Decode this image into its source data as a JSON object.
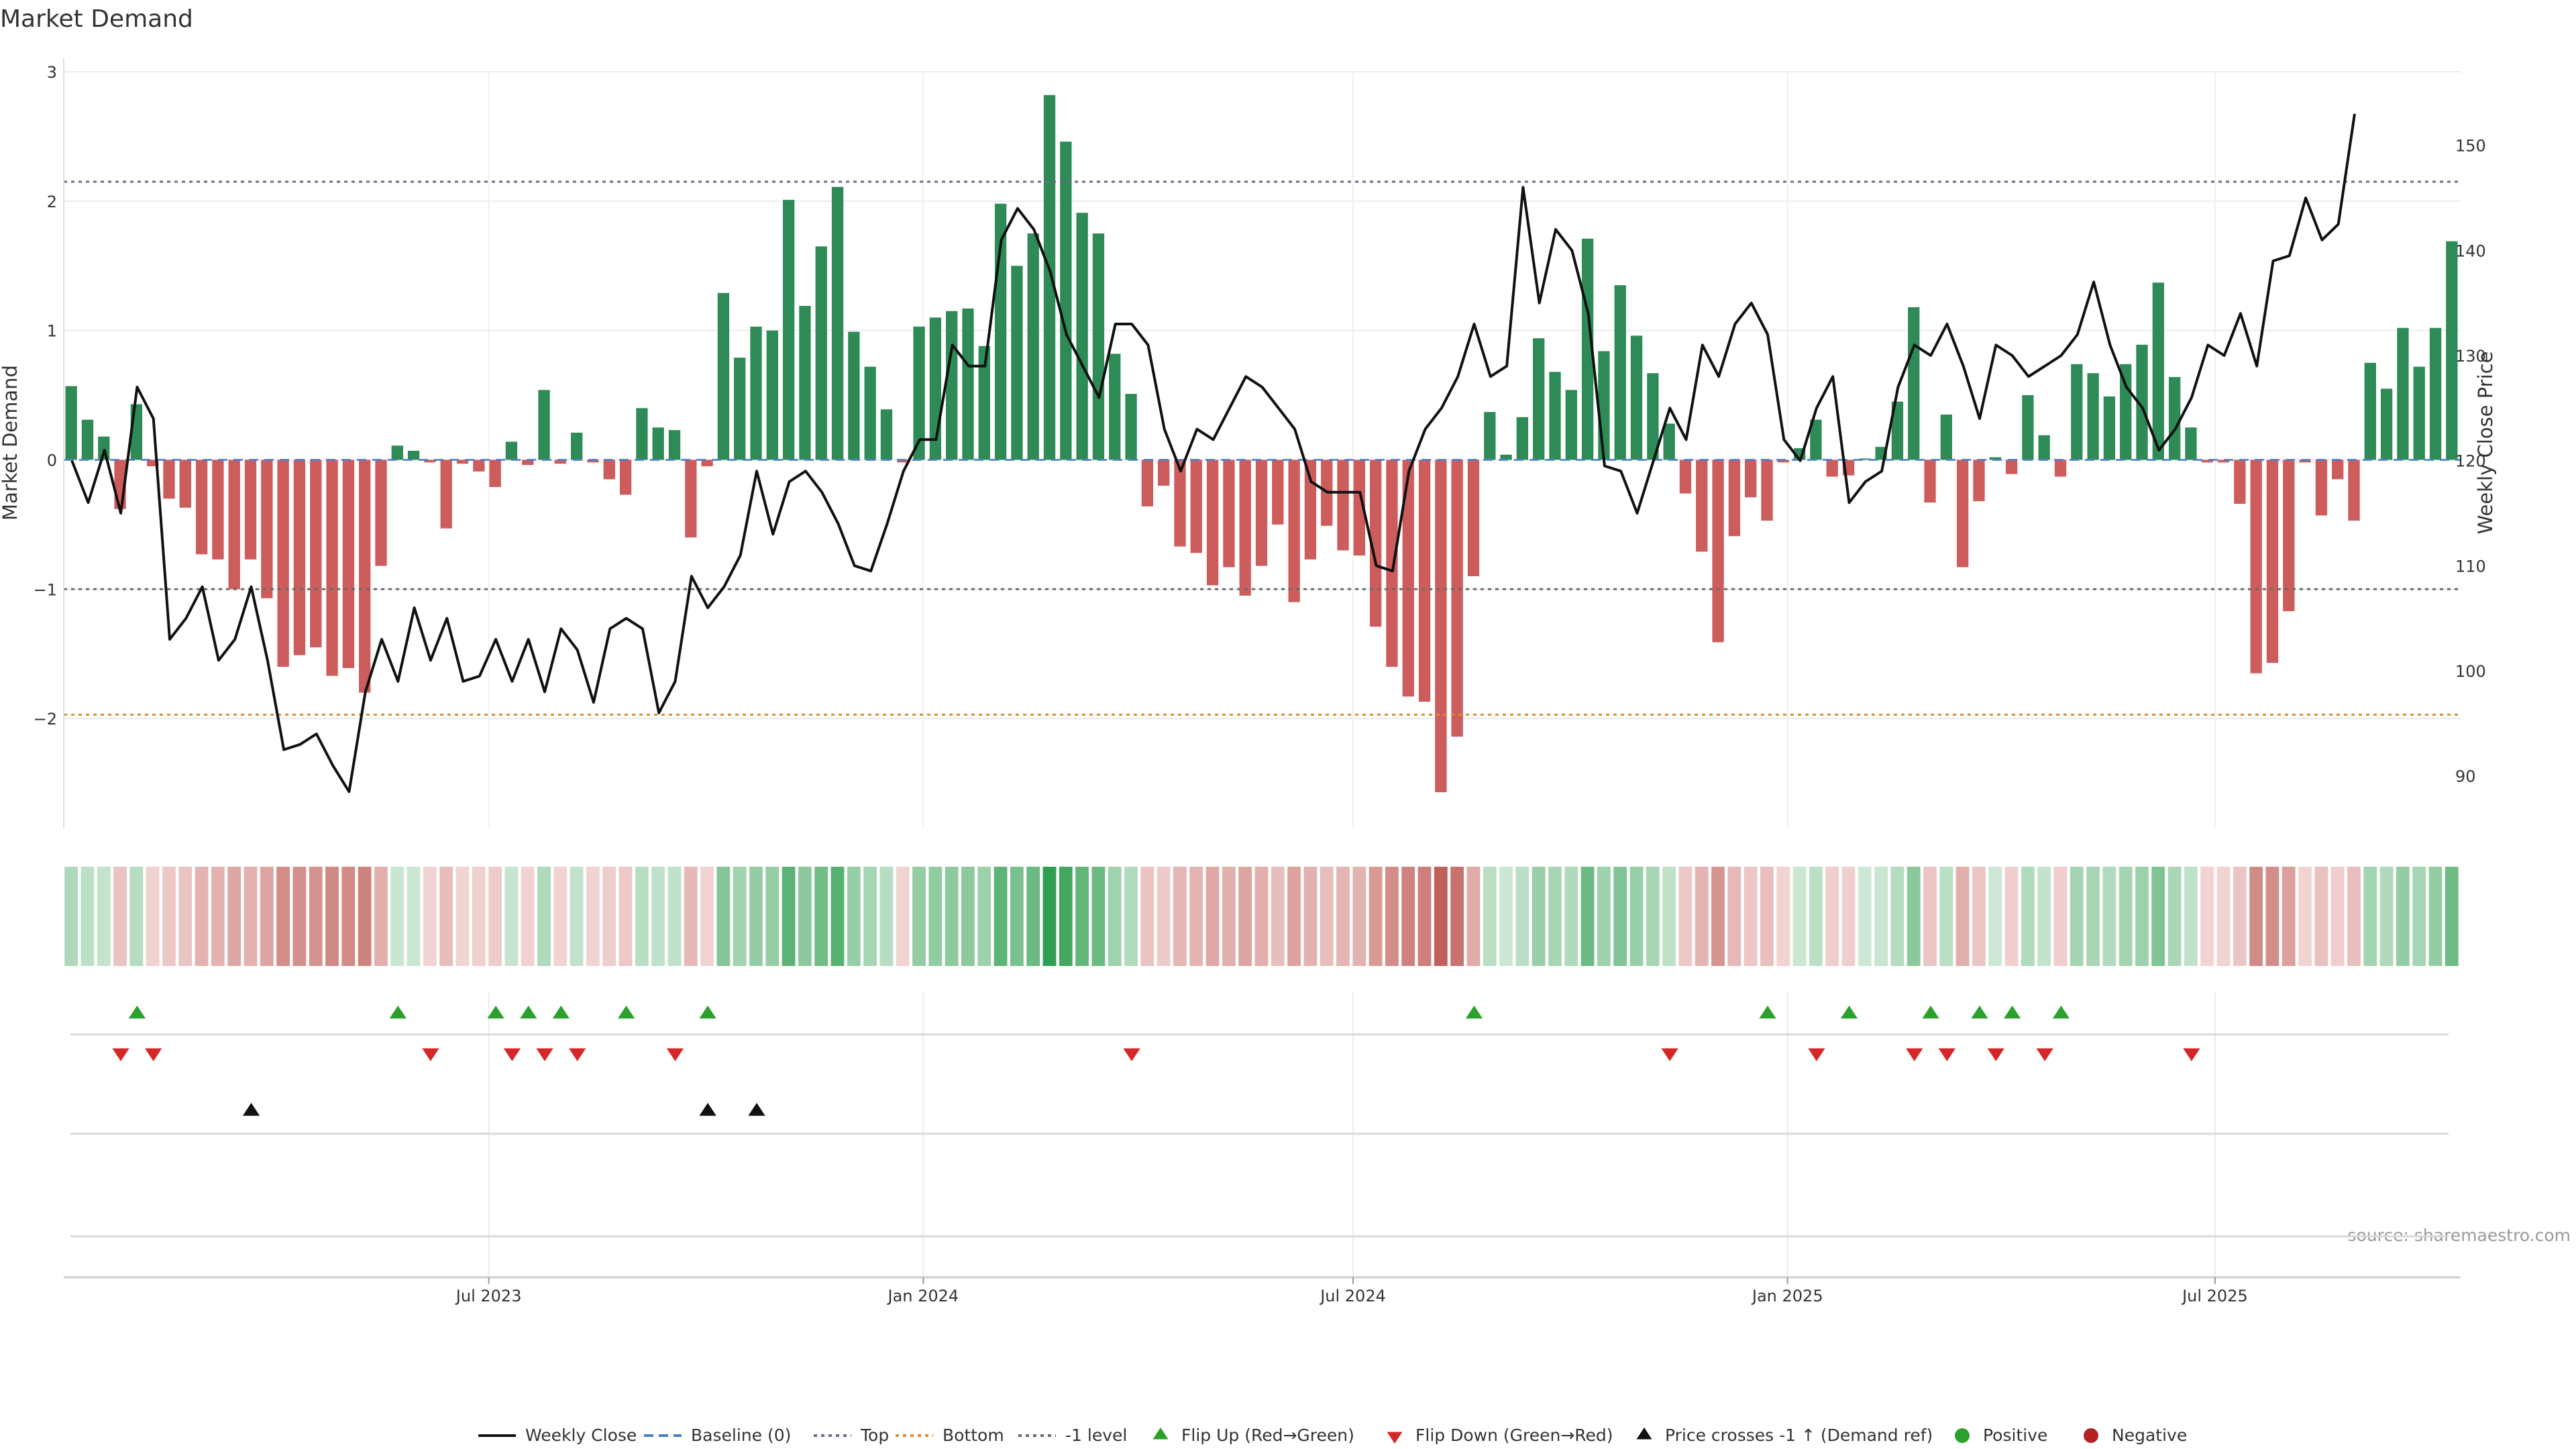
{
  "chart_data": {
    "type": "bar",
    "title": "Market Demand",
    "ylabel_left": "Market Demand",
    "ylabel_right": "Weekly Close Price",
    "source": "source: sharemaestro.com",
    "ylim_left": [
      -2.85,
      3.0
    ],
    "ylim_right": [
      85,
      157
    ],
    "yticks_left": [
      -2,
      -1,
      0,
      1,
      2,
      3
    ],
    "yticks_left_labels": [
      "−2",
      "−1",
      "0",
      "1",
      "2",
      "3"
    ],
    "yticks_right": [
      90,
      100,
      110,
      120,
      130,
      140,
      150
    ],
    "yticks_right_labels": [
      "90",
      "100",
      "110",
      "120",
      "130",
      "140",
      "150"
    ],
    "x_start": "2023-01-02",
    "x_end": "2025-10-13",
    "x_ticks": [
      {
        "date": "2023-07-01",
        "label": "Jul 2023"
      },
      {
        "date": "2024-01-01",
        "label": "Jan 2024"
      },
      {
        "date": "2024-07-01",
        "label": "Jul 2024"
      },
      {
        "date": "2025-01-01",
        "label": "Jan 2025"
      },
      {
        "date": "2025-07-01",
        "label": "Jul 2025"
      }
    ],
    "reference_lines": [
      {
        "name": "Top",
        "value": 2.15,
        "color": "#6b6b8a",
        "style": "dotted"
      },
      {
        "name": "Bottom",
        "value": -1.97,
        "color": "#e08a2e",
        "style": "dotted"
      },
      {
        "name": "-1 level",
        "value": -1.0,
        "color": "#6b6b6b",
        "style": "dotted"
      }
    ],
    "demand": [
      0.57,
      0.31,
      0.18,
      -0.38,
      0.43,
      -0.05,
      -0.3,
      -0.37,
      -0.73,
      -0.77,
      -1.0,
      -0.77,
      -1.07,
      -1.6,
      -1.51,
      -1.45,
      -1.67,
      -1.61,
      -1.8,
      -0.82,
      0.11,
      0.07,
      -0.02,
      -0.53,
      -0.03,
      -0.09,
      -0.21,
      0.14,
      -0.04,
      0.54,
      -0.03,
      0.21,
      -0.02,
      -0.15,
      -0.27,
      0.4,
      0.25,
      0.23,
      -0.6,
      -0.05,
      1.29,
      0.79,
      1.03,
      1.0,
      2.01,
      1.19,
      1.65,
      2.11,
      0.99,
      0.72,
      0.39,
      -0.02,
      1.03,
      1.1,
      1.15,
      1.17,
      0.88,
      1.98,
      1.5,
      1.75,
      2.82,
      2.46,
      1.91,
      1.75,
      0.82,
      0.51,
      -0.36,
      -0.2,
      -0.67,
      -0.72,
      -0.97,
      -0.83,
      -1.05,
      -0.82,
      -0.5,
      -1.1,
      -0.77,
      -0.51,
      -0.7,
      -0.74,
      -1.29,
      -1.6,
      -1.83,
      -1.87,
      -2.57,
      -2.14,
      -0.9,
      0.37,
      0.04,
      0.33,
      0.94,
      0.68,
      0.54,
      1.71,
      0.84,
      1.35,
      0.96,
      0.67,
      0.28,
      -0.26,
      -0.71,
      -1.41,
      -0.59,
      -0.29,
      -0.47,
      -0.02,
      0.09,
      0.31,
      -0.13,
      -0.12,
      0.01,
      0.1,
      0.45,
      1.18,
      -0.33,
      0.35,
      -0.83,
      -0.32,
      0.02,
      -0.11,
      0.5,
      0.19,
      -0.13,
      0.74,
      0.67,
      0.49,
      0.74,
      0.89,
      1.37,
      0.64,
      0.25,
      -0.02,
      -0.02,
      -0.34,
      -1.65,
      -1.57,
      -1.17,
      -0.02,
      -0.43,
      -0.15,
      -0.47,
      0.75,
      0.55,
      1.02,
      0.72,
      1.02,
      1.69
    ],
    "weekly_close": [
      120.0,
      116.0,
      121.0,
      115.0,
      127.0,
      124.0,
      103.0,
      105.0,
      108.0,
      101.0,
      103.0,
      108.0,
      101.0,
      92.5,
      93.0,
      94.0,
      91.0,
      88.5,
      98.0,
      103.0,
      99.0,
      106.0,
      101.0,
      105.0,
      99.0,
      99.5,
      103.0,
      99.0,
      103.0,
      98.0,
      104.0,
      102.0,
      97.0,
      104.0,
      105.0,
      104.0,
      96.0,
      99.0,
      109.0,
      106.0,
      108.0,
      111.0,
      119.0,
      113.0,
      118.0,
      119.0,
      117.0,
      114.0,
      110.0,
      109.5,
      114.0,
      119.0,
      122.0,
      122.0,
      131.0,
      129.0,
      129.0,
      141.0,
      144.0,
      142.0,
      138.0,
      132.0,
      129.0,
      126.0,
      133.0,
      133.0,
      131.0,
      123.0,
      119.0,
      123.0,
      122.0,
      125.0,
      128.0,
      127.0,
      125.0,
      123.0,
      118.0,
      117.0,
      117.0,
      117.0,
      110.0,
      109.5,
      119.0,
      123.0,
      125.0,
      128.0,
      133.0,
      128.0,
      129.0,
      146.0,
      135.0,
      142.0,
      140.0,
      134.0,
      119.5,
      119.0,
      115.0,
      120.0,
      125.0,
      122.0,
      131.0,
      128.0,
      133.0,
      135.0,
      132.0,
      122.0,
      120.0,
      125.0,
      128.0,
      116.0,
      118.0,
      119.0,
      127.0,
      131.0,
      130.0,
      133.0,
      129.0,
      124.0,
      131.0,
      130.0,
      128.0,
      129.0,
      130.0,
      132.0,
      137.0,
      131.0,
      127.0,
      125.0,
      121.0,
      123.0,
      126.0,
      131.0,
      130.0,
      134.0,
      129.0,
      139.0,
      139.5,
      145.0,
      141.0,
      142.5,
      153.0
    ],
    "flip_up_weeks": [
      4,
      20,
      26,
      28,
      30,
      34,
      39,
      86,
      104,
      109,
      114,
      117,
      119,
      122
    ],
    "flip_down_weeks": [
      3,
      5,
      22,
      27,
      29,
      31,
      37,
      65,
      98,
      107,
      113,
      115,
      118,
      121,
      130
    ],
    "price_cross_weeks": [
      11,
      39,
      42
    ],
    "colors": {
      "positive": "#2e8b57",
      "negative": "#cd5c5c",
      "weekly_close": "#111111",
      "baseline": "#4a7fc1",
      "flip_up": "#2ca02c",
      "flip_down": "#d62728",
      "price_cross": "#111111",
      "positive_dot": "#2ca02c",
      "negative_dot": "#b22222"
    },
    "legend": [
      {
        "key": "weekly_close",
        "label": "Weekly Close",
        "marker": "line"
      },
      {
        "key": "baseline",
        "label": "Baseline (0)",
        "marker": "dash"
      },
      {
        "key": "top",
        "label": "Top",
        "marker": "dotted",
        "color": "#6b6b8a"
      },
      {
        "key": "bottom",
        "label": "Bottom",
        "marker": "dotted",
        "color": "#e08a2e"
      },
      {
        "key": "minus1",
        "label": "-1 level",
        "marker": "dotted",
        "color": "#6b6b6b"
      },
      {
        "key": "flip_up",
        "label": "Flip Up (Red→Green)",
        "marker": "tri-up"
      },
      {
        "key": "flip_down",
        "label": "Flip Down (Green→Red)",
        "marker": "tri-down"
      },
      {
        "key": "price_cross",
        "label": "Price crosses -1 ↑ (Demand ref)",
        "marker": "tri-up-black"
      },
      {
        "key": "positive_dot",
        "label": "Positive",
        "marker": "dot"
      },
      {
        "key": "negative_dot",
        "label": "Negative",
        "marker": "dot"
      }
    ],
    "legend_position": "bottom-center",
    "grid": true
  }
}
